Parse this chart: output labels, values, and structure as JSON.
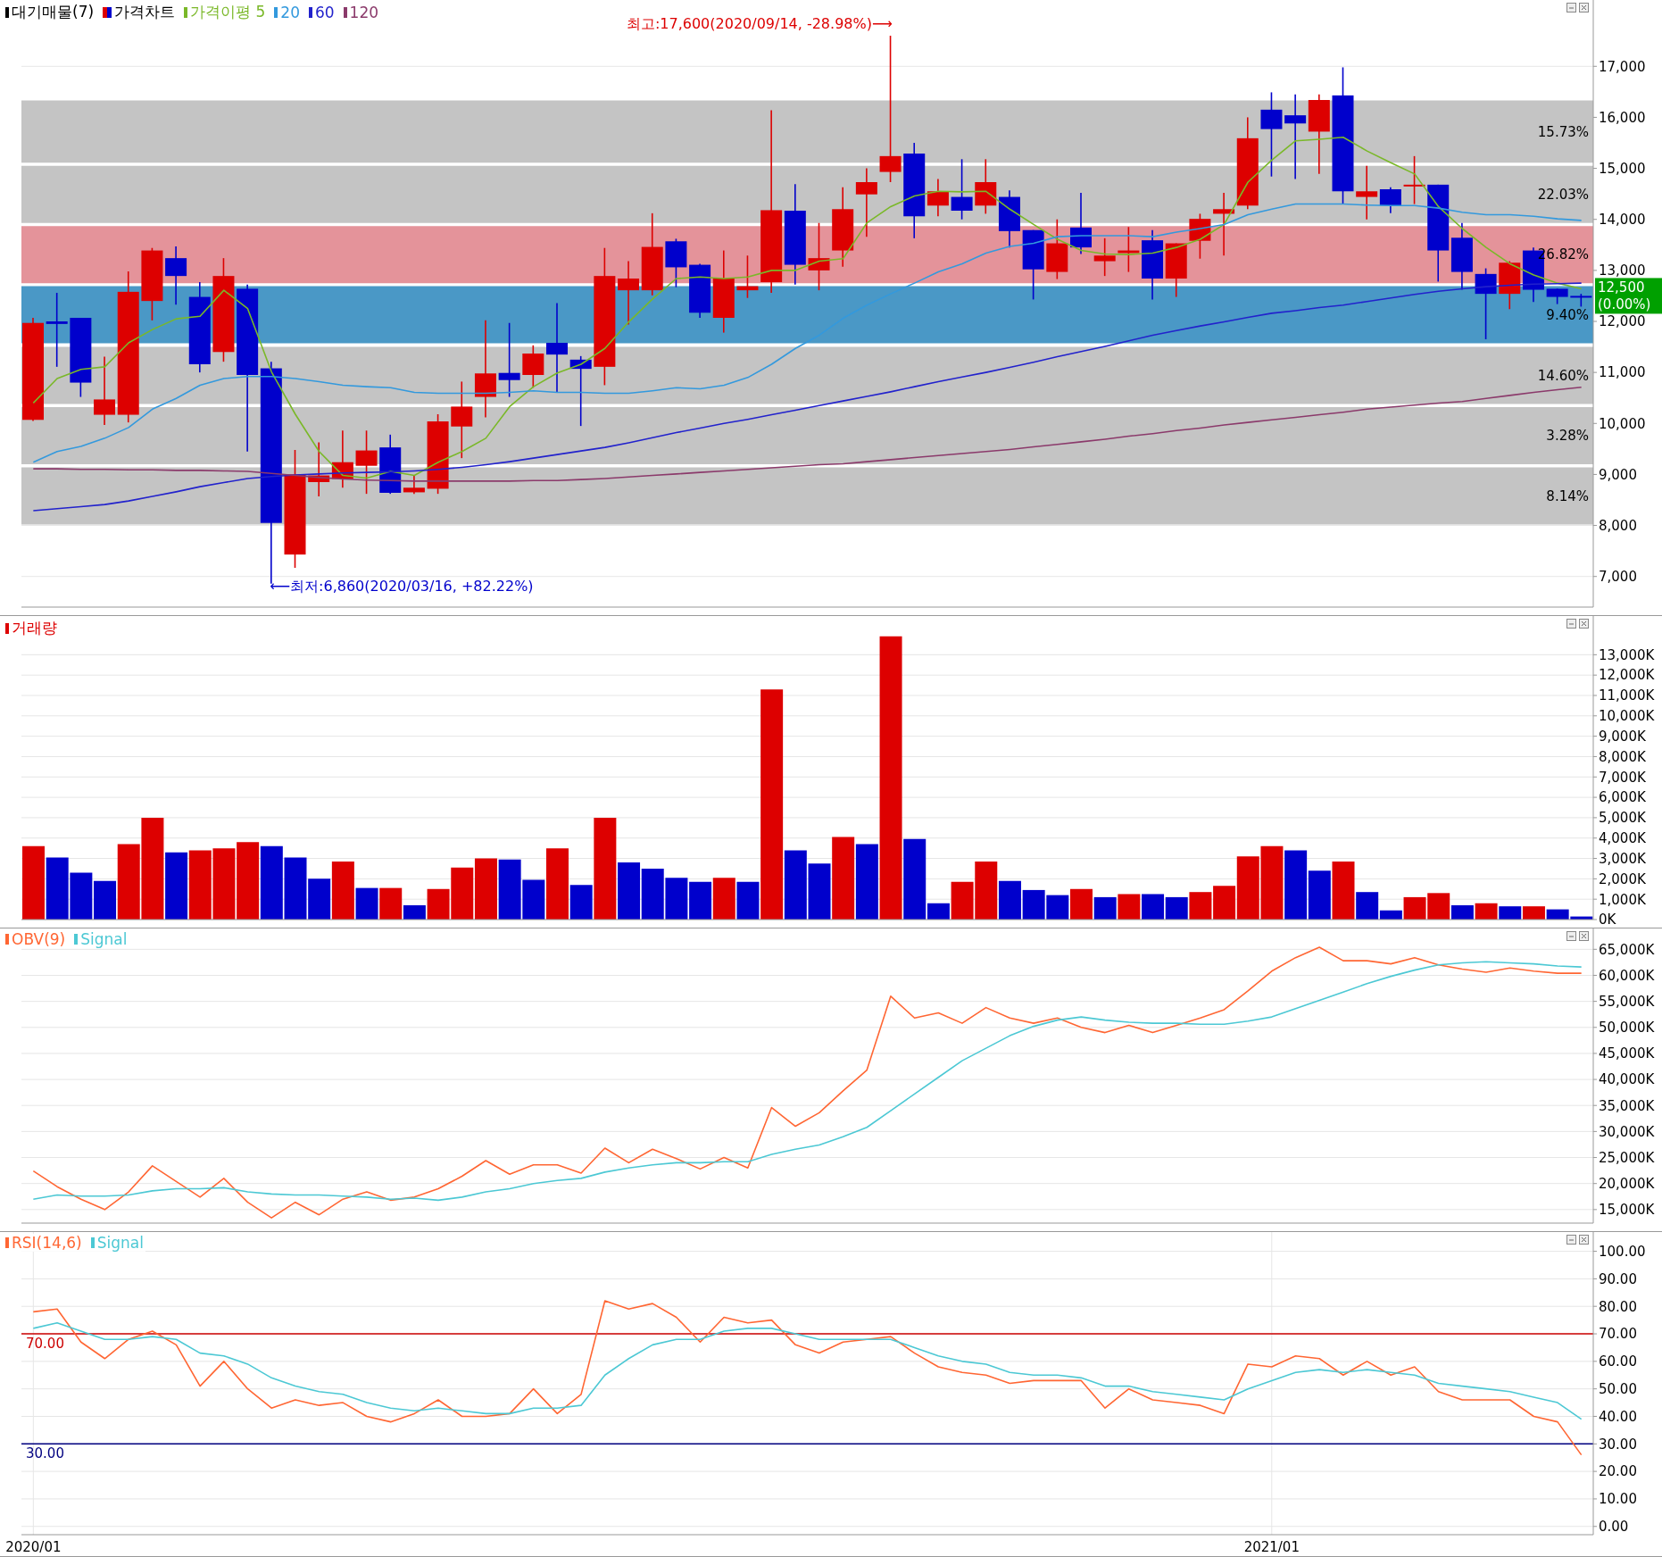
{
  "chart_data": [
    {
      "type": "candlestick",
      "legend_title": "대기매물(7)",
      "legend": "top left",
      "grid": true,
      "tick_labels": "y",
      "categories": [
        "2020/01",
        null,
        null,
        null,
        null,
        null,
        null,
        null,
        null,
        null,
        null,
        null,
        null,
        null,
        null,
        null,
        null,
        null,
        null,
        null,
        null,
        null,
        null,
        null,
        null,
        null,
        null,
        null,
        null,
        null,
        null,
        null,
        null,
        null,
        null,
        null,
        null,
        null,
        null,
        null,
        null,
        null,
        null,
        null,
        null,
        null,
        null,
        null,
        null,
        null,
        null,
        null,
        "2021/01",
        null,
        null,
        null,
        null,
        null,
        null,
        null,
        null,
        null,
        null,
        null,
        null,
        null
      ],
      "ylim": [
        6400,
        18300
      ],
      "yticks": [
        {
          "value": 7000,
          "label": "7,000"
        },
        {
          "value": 8000,
          "label": "8,000"
        },
        {
          "value": 9000,
          "label": "9,000"
        },
        {
          "value": 10000,
          "label": "10,000"
        },
        {
          "value": 11000,
          "label": "11,000"
        },
        {
          "value": 12000,
          "label": "12,000"
        },
        {
          "value": 13000,
          "label": "13,000"
        },
        {
          "value": 14000,
          "label": "14,000"
        },
        {
          "value": 15000,
          "label": "15,000"
        },
        {
          "value": 16000,
          "label": "16,000"
        },
        {
          "value": 17000,
          "label": "17,000"
        }
      ],
      "bands": [
        {
          "axis": "y",
          "from": 15110,
          "to": 16330,
          "label": "15.73%",
          "color": "#c4c4c4"
        },
        {
          "axis": "y",
          "from": 13930,
          "to": 15050,
          "label": "22.03%",
          "color": "#c4c4c4"
        },
        {
          "axis": "y",
          "from": 12750,
          "to": 13870,
          "label": "26.82%",
          "color": "#e4939a"
        },
        {
          "axis": "y",
          "from": 11570,
          "to": 12690,
          "label": "9.40%",
          "color": "#4a98c6"
        },
        {
          "axis": "y",
          "from": 10380,
          "to": 11500,
          "label": "14.60%",
          "color": "#c4c4c4"
        },
        {
          "axis": "y",
          "from": 9200,
          "to": 10320,
          "label": "3.28%",
          "color": "#c4c4c4"
        },
        {
          "axis": "y",
          "from": 8020,
          "to": 9140,
          "label": "8.14%",
          "color": "#c4c4c4"
        }
      ],
      "annotations": [
        "최고:17,600(2020/09/14, -28.98%)⟶",
        "⟵최저:6,860(2020/03/16, +82.22%)",
        "12,500\n(0.00%)"
      ],
      "series": [
        {
          "name": "가격차트",
          "ohlc": [
            [
              10070,
              12070,
              10050,
              11970
            ],
            [
              12000,
              12560,
              11110,
              11950
            ],
            [
              12070,
              12070,
              10520,
              10800
            ],
            [
              10170,
              11310,
              9970,
              10470
            ],
            [
              10170,
              12980,
              10020,
              12580
            ],
            [
              12400,
              13440,
              12020,
              13390
            ],
            [
              13240,
              13470,
              12330,
              12890
            ],
            [
              12480,
              12770,
              11000,
              11160
            ],
            [
              11400,
              13240,
              11210,
              12890
            ],
            [
              12640,
              12720,
              9450,
              10950
            ],
            [
              11080,
              11210,
              6860,
              8050
            ],
            [
              7430,
              9480,
              7170,
              9000
            ],
            [
              8850,
              9630,
              8570,
              8980
            ],
            [
              8910,
              9860,
              8740,
              9240
            ],
            [
              9170,
              9860,
              8620,
              9470
            ],
            [
              9530,
              9780,
              8620,
              8640
            ],
            [
              8650,
              8980,
              8620,
              8740
            ],
            [
              8720,
              10180,
              8620,
              10040
            ],
            [
              9940,
              10820,
              9320,
              10330
            ],
            [
              10520,
              12020,
              10120,
              10980
            ],
            [
              10990,
              11970,
              10520,
              10850
            ],
            [
              10950,
              11530,
              10700,
              11370
            ],
            [
              11580,
              12360,
              10610,
              11350
            ],
            [
              11250,
              11320,
              9950,
              11070
            ],
            [
              11110,
              13440,
              10750,
              12890
            ],
            [
              12610,
              13180,
              11940,
              12840
            ],
            [
              12610,
              14120,
              12510,
              13460
            ],
            [
              13570,
              13620,
              12670,
              13060
            ],
            [
              13110,
              13130,
              12070,
              12170
            ],
            [
              12070,
              13390,
              11780,
              12840
            ],
            [
              12610,
              13290,
              12460,
              12690
            ],
            [
              12770,
              16140,
              12560,
              14180
            ],
            [
              14170,
              14690,
              12720,
              13110
            ],
            [
              13000,
              13930,
              12610,
              13240
            ],
            [
              13390,
              14630,
              13070,
              14200
            ],
            [
              14490,
              15000,
              13660,
              14730
            ],
            [
              14930,
              17600,
              14730,
              15240
            ],
            [
              15290,
              15500,
              13630,
              14060
            ],
            [
              14270,
              14790,
              14060,
              14550
            ],
            [
              14440,
              15180,
              14000,
              14170
            ],
            [
              14270,
              15180,
              14110,
              14730
            ],
            [
              14440,
              14570,
              13450,
              13770
            ],
            [
              13790,
              13790,
              12430,
              13020
            ],
            [
              12970,
              14000,
              12830,
              13530
            ],
            [
              13840,
              14520,
              13320,
              13450
            ],
            [
              13180,
              13630,
              12890,
              13290
            ],
            [
              13340,
              13850,
              12970,
              13390
            ],
            [
              13590,
              13790,
              12430,
              12840
            ],
            [
              12840,
              13530,
              12480,
              13530
            ],
            [
              13580,
              14110,
              13230,
              14010
            ],
            [
              14110,
              14520,
              13290,
              14200
            ],
            [
              14270,
              16000,
              14200,
              15590
            ],
            [
              16150,
              16490,
              14840,
              15770
            ],
            [
              16040,
              16450,
              14790,
              15880
            ],
            [
              15720,
              16450,
              14890,
              16340
            ],
            [
              16430,
              16980,
              14300,
              14550
            ],
            [
              14440,
              15050,
              14000,
              14550
            ],
            [
              14590,
              14630,
              14120,
              14270
            ],
            [
              14660,
              15240,
              14300,
              14680
            ],
            [
              14680,
              14680,
              12780,
              13390
            ],
            [
              13640,
              13930,
              12620,
              12970
            ],
            [
              12930,
              13040,
              11650,
              12540
            ],
            [
              12540,
              13180,
              12240,
              13150
            ],
            [
              13390,
              13450,
              12380,
              12620
            ],
            [
              12640,
              12640,
              12340,
              12480
            ],
            [
              12500,
              12540,
              12290,
              12500
            ]
          ],
          "colors": [
            "#dd0000",
            "#0000cc",
            "#0000cc",
            "#dd0000",
            "#dd0000",
            "#dd0000",
            "#0000cc",
            "#0000cc",
            "#dd0000",
            "#0000cc",
            "#0000cc",
            "#dd0000",
            "#dd0000",
            "#dd0000",
            "#dd0000",
            "#0000cc",
            "#dd0000",
            "#dd0000",
            "#dd0000",
            "#dd0000",
            "#0000cc",
            "#dd0000",
            "#0000cc",
            "#0000cc",
            "#dd0000",
            "#dd0000",
            "#dd0000",
            "#0000cc",
            "#0000cc",
            "#dd0000",
            "#dd0000",
            "#dd0000",
            "#0000cc",
            "#dd0000",
            "#dd0000",
            "#dd0000",
            "#dd0000",
            "#0000cc",
            "#dd0000",
            "#0000cc",
            "#dd0000",
            "#0000cc",
            "#0000cc",
            "#dd0000",
            "#0000cc",
            "#dd0000",
            "#dd0000",
            "#0000cc",
            "#dd0000",
            "#dd0000",
            "#dd0000",
            "#dd0000",
            "#0000cc",
            "#0000cc",
            "#dd0000",
            "#0000cc",
            "#dd0000",
            "#0000cc",
            "#dd0000",
            "#0000cc",
            "#0000cc",
            "#0000cc",
            "#dd0000",
            "#0000cc",
            "#0000cc",
            "#0000cc"
          ]
        },
        {
          "name": "가격이평 5",
          "type": "line",
          "color": "#7ab828",
          "values": [
            10400,
            10880,
            11060,
            11110,
            11580,
            11840,
            12050,
            12100,
            12610,
            12250,
            11010,
            10180,
            9450,
            8980,
            8930,
            9060,
            8980,
            9240,
            9450,
            9710,
            10330,
            10720,
            10990,
            11160,
            11470,
            11990,
            12440,
            12840,
            12870,
            12840,
            12870,
            13000,
            13000,
            13180,
            13230,
            13930,
            14250,
            14460,
            14550,
            14540,
            14550,
            14200,
            13900,
            13610,
            13390,
            13320,
            13310,
            13340,
            13450,
            13610,
            13900,
            14730,
            15160,
            15540,
            15570,
            15610,
            15340,
            15110,
            14890,
            14250,
            13820,
            13450,
            13130,
            12910,
            12750,
            12640
          ]
        },
        {
          "name": "20",
          "type": "line",
          "color": "#3399dd",
          "values": [
            9240,
            9450,
            9550,
            9710,
            9920,
            10280,
            10490,
            10750,
            10880,
            10920,
            10920,
            10880,
            10820,
            10750,
            10720,
            10700,
            10610,
            10590,
            10590,
            10590,
            10610,
            10640,
            10610,
            10610,
            10590,
            10590,
            10640,
            10700,
            10680,
            10750,
            10900,
            11160,
            11470,
            11730,
            12060,
            12320,
            12540,
            12750,
            12970,
            13130,
            13340,
            13470,
            13530,
            13660,
            13680,
            13680,
            13680,
            13660,
            13750,
            13820,
            13900,
            14090,
            14200,
            14300,
            14300,
            14300,
            14280,
            14270,
            14270,
            14220,
            14140,
            14090,
            14090,
            14060,
            14010,
            13980
          ]
        },
        {
          "name": "60",
          "type": "line",
          "color": "#2222cc",
          "values": [
            8290,
            8330,
            8370,
            8410,
            8480,
            8570,
            8660,
            8760,
            8840,
            8920,
            8960,
            8990,
            9010,
            9030,
            9040,
            9050,
            9070,
            9100,
            9140,
            9190,
            9250,
            9320,
            9390,
            9460,
            9530,
            9620,
            9720,
            9820,
            9910,
            10000,
            10080,
            10170,
            10260,
            10350,
            10440,
            10530,
            10620,
            10720,
            10820,
            10910,
            11000,
            11100,
            11200,
            11310,
            11410,
            11510,
            11620,
            11730,
            11820,
            11910,
            11990,
            12080,
            12160,
            12210,
            12270,
            12320,
            12390,
            12460,
            12530,
            12590,
            12640,
            12680,
            12710,
            12730,
            12740,
            12750
          ]
        },
        {
          "name": "120",
          "type": "line",
          "color": "#8b3a6b",
          "values": [
            9110,
            9110,
            9100,
            9100,
            9090,
            9090,
            9080,
            9080,
            9070,
            9060,
            9020,
            8980,
            8940,
            8910,
            8890,
            8880,
            8870,
            8870,
            8870,
            8870,
            8870,
            8880,
            8880,
            8900,
            8920,
            8950,
            8980,
            9010,
            9040,
            9070,
            9100,
            9130,
            9160,
            9190,
            9210,
            9250,
            9290,
            9330,
            9370,
            9410,
            9450,
            9490,
            9540,
            9590,
            9640,
            9690,
            9750,
            9800,
            9860,
            9910,
            9970,
            10020,
            10070,
            10120,
            10170,
            10220,
            10280,
            10320,
            10360,
            10400,
            10430,
            10490,
            10550,
            10610,
            10660,
            10710
          ]
        }
      ]
    },
    {
      "type": "bar",
      "legend": "top left",
      "grid": true,
      "tick_labels": "y",
      "categories": [
        "2020/01",
        null,
        null,
        null,
        null,
        null,
        null,
        null,
        null,
        null,
        null,
        null,
        null,
        null,
        null,
        null,
        null,
        null,
        null,
        null,
        null,
        null,
        null,
        null,
        null,
        null,
        null,
        null,
        null,
        null,
        null,
        null,
        null,
        null,
        null,
        null,
        null,
        null,
        null,
        null,
        null,
        null,
        null,
        null,
        null,
        null,
        null,
        null,
        null,
        null,
        null,
        null,
        "2021/01",
        null,
        null,
        null,
        null,
        null,
        null,
        null,
        null,
        null,
        null,
        null,
        null,
        null
      ],
      "ylim": [
        0,
        14900
      ],
      "yticks": [
        {
          "value": 0,
          "label": "0K"
        },
        {
          "value": 1000,
          "label": "1,000K"
        },
        {
          "value": 2000,
          "label": "2,000K"
        },
        {
          "value": 3000,
          "label": "3,000K"
        },
        {
          "value": 4000,
          "label": "4,000K"
        },
        {
          "value": 5000,
          "label": "5,000K"
        },
        {
          "value": 6000,
          "label": "6,000K"
        },
        {
          "value": 7000,
          "label": "7,000K"
        },
        {
          "value": 8000,
          "label": "8,000K"
        },
        {
          "value": 9000,
          "label": "9,000K"
        },
        {
          "value": 10000,
          "label": "10,000K"
        },
        {
          "value": 11000,
          "label": "11,000K"
        },
        {
          "value": 12000,
          "label": "12,000K"
        },
        {
          "value": 13000,
          "label": "13,000K"
        }
      ],
      "series": [
        {
          "name": "거래량",
          "color": "#dd0000",
          "values": [
            3600,
            3050,
            2300,
            1900,
            3700,
            5000,
            3300,
            3400,
            3500,
            3800,
            3600,
            3050,
            2000,
            2850,
            1550,
            1550,
            700,
            1500,
            2550,
            3000,
            2950,
            1950,
            3500,
            1700,
            5000,
            2800,
            2500,
            2050,
            1850,
            2050,
            1850,
            11300,
            3400,
            2750,
            4050,
            3700,
            13900,
            3950,
            800,
            1850,
            2850,
            1900,
            1450,
            1200,
            1500,
            1100,
            1250,
            1250,
            1100,
            1350,
            1650,
            3100,
            3600,
            3400,
            2400,
            2850,
            1350,
            450,
            1100,
            1300,
            700,
            800,
            650,
            650,
            500,
            150
          ],
          "colors": [
            "#dd0000",
            "#0000cc",
            "#0000cc",
            "#0000cc",
            "#dd0000",
            "#dd0000",
            "#0000cc",
            "#dd0000",
            "#dd0000",
            "#dd0000",
            "#0000cc",
            "#0000cc",
            "#0000cc",
            "#dd0000",
            "#0000cc",
            "#dd0000",
            "#0000cc",
            "#dd0000",
            "#dd0000",
            "#dd0000",
            "#0000cc",
            "#0000cc",
            "#dd0000",
            "#0000cc",
            "#dd0000",
            "#0000cc",
            "#0000cc",
            "#0000cc",
            "#0000cc",
            "#dd0000",
            "#0000cc",
            "#dd0000",
            "#0000cc",
            "#0000cc",
            "#dd0000",
            "#0000cc",
            "#dd0000",
            "#0000cc",
            "#0000cc",
            "#dd0000",
            "#dd0000",
            "#0000cc",
            "#0000cc",
            "#0000cc",
            "#dd0000",
            "#0000cc",
            "#dd0000",
            "#0000cc",
            "#0000cc",
            "#dd0000",
            "#dd0000",
            "#dd0000",
            "#dd0000",
            "#0000cc",
            "#0000cc",
            "#dd0000",
            "#0000cc",
            "#0000cc",
            "#dd0000",
            "#dd0000",
            "#0000cc",
            "#dd0000",
            "#0000cc",
            "#dd0000",
            "#0000cc",
            "#0000cc"
          ]
        }
      ]
    },
    {
      "type": "line",
      "legend": "top left",
      "grid": true,
      "tick_labels": "y",
      "categories": [
        "2020/01",
        null,
        null,
        null,
        null,
        null,
        null,
        null,
        null,
        null,
        null,
        null,
        null,
        null,
        null,
        null,
        null,
        null,
        null,
        null,
        null,
        null,
        null,
        null,
        null,
        null,
        null,
        null,
        null,
        null,
        null,
        null,
        null,
        null,
        null,
        null,
        null,
        null,
        null,
        null,
        null,
        null,
        null,
        null,
        null,
        null,
        null,
        null,
        null,
        null,
        null,
        null,
        "2021/01",
        null,
        null,
        null,
        null,
        null,
        null,
        null,
        null,
        null,
        null,
        null,
        null,
        null
      ],
      "ylim": [
        12400,
        69000
      ],
      "yticks": [
        {
          "value": 15000,
          "label": "15,000K"
        },
        {
          "value": 20000,
          "label": "20,000K"
        },
        {
          "value": 25000,
          "label": "25,000K"
        },
        {
          "value": 30000,
          "label": "30,000K"
        },
        {
          "value": 35000,
          "label": "35,000K"
        },
        {
          "value": 40000,
          "label": "40,000K"
        },
        {
          "value": 45000,
          "label": "45,000K"
        },
        {
          "value": 50000,
          "label": "50,000K"
        },
        {
          "value": 55000,
          "label": "55,000K"
        },
        {
          "value": 60000,
          "label": "60,000K"
        },
        {
          "value": 65000,
          "label": "65,000K"
        }
      ],
      "series": [
        {
          "name": "OBV(9)",
          "color": "#ff6633",
          "values": [
            22400,
            19400,
            17000,
            15000,
            18400,
            23400,
            20400,
            17400,
            21000,
            16400,
            13400,
            16400,
            14000,
            17000,
            18400,
            16800,
            17400,
            19000,
            21400,
            24400,
            21800,
            23600,
            23600,
            22000,
            26800,
            24000,
            26600,
            24800,
            22800,
            25000,
            23000,
            34600,
            31000,
            33600,
            37800,
            41800,
            56000,
            51800,
            52800,
            50800,
            53800,
            51800,
            50800,
            51800,
            50000,
            49000,
            50400,
            49000,
            50400,
            51800,
            53400,
            57000,
            60800,
            63400,
            65400,
            62800,
            62800,
            62200,
            63400,
            62000,
            61200,
            60600,
            61400,
            60800,
            60400,
            60400
          ]
        },
        {
          "name": "Signal",
          "color": "#4cc8d4",
          "values": [
            17000,
            17800,
            17600,
            17600,
            17800,
            18600,
            19000,
            19000,
            19200,
            18400,
            18000,
            17800,
            17800,
            17600,
            17400,
            17000,
            17200,
            16800,
            17400,
            18400,
            19000,
            20000,
            20600,
            21000,
            22200,
            23000,
            23600,
            24000,
            24000,
            24200,
            24200,
            25600,
            26600,
            27400,
            29000,
            30800,
            34000,
            37200,
            40400,
            43600,
            46000,
            48400,
            50200,
            51400,
            52000,
            51400,
            51000,
            50800,
            50800,
            50600,
            50600,
            51200,
            52000,
            53600,
            55200,
            56800,
            58400,
            59800,
            61000,
            62000,
            62400,
            62600,
            62400,
            62200,
            61800,
            61600
          ]
        }
      ]
    },
    {
      "type": "line",
      "legend": "top left",
      "grid": true,
      "categories": [
        "2020/01",
        null,
        null,
        null,
        null,
        null,
        null,
        null,
        null,
        null,
        null,
        null,
        null,
        null,
        null,
        null,
        null,
        null,
        null,
        null,
        null,
        null,
        null,
        null,
        null,
        null,
        null,
        null,
        null,
        null,
        null,
        null,
        null,
        null,
        null,
        null,
        null,
        null,
        null,
        null,
        null,
        null,
        null,
        null,
        null,
        null,
        null,
        null,
        null,
        null,
        null,
        null,
        "2021/01",
        null,
        null,
        null,
        null,
        null,
        null,
        null,
        null,
        null,
        null,
        null,
        null,
        null
      ],
      "ylim": [
        -3,
        107
      ],
      "yticks": [
        {
          "value": 0,
          "label": "0.00"
        },
        {
          "value": 10,
          "label": "10.00"
        },
        {
          "value": 20,
          "label": "20.00"
        },
        {
          "value": 30,
          "label": "30.00"
        },
        {
          "value": 40,
          "label": "40.00"
        },
        {
          "value": 50,
          "label": "50.00"
        },
        {
          "value": 60,
          "label": "60.00"
        },
        {
          "value": 70,
          "label": "70.00"
        },
        {
          "value": 80,
          "label": "80.00"
        },
        {
          "value": 90,
          "label": "90.00"
        },
        {
          "value": 100,
          "label": "100.00"
        }
      ],
      "ref_lines": [
        {
          "axis": "y",
          "value": 70,
          "label": "70.00",
          "color": "#cc0000"
        },
        {
          "axis": "y",
          "value": 30,
          "label": "30.00",
          "color": "#000080"
        }
      ],
      "series": [
        {
          "name": "RSI(14,6)",
          "color": "#ff6633",
          "values": [
            78,
            79,
            67,
            61,
            68,
            71,
            66,
            51,
            60,
            50,
            43,
            46,
            44,
            45,
            40,
            38,
            41,
            46,
            40,
            40,
            41,
            50,
            41,
            48,
            82,
            79,
            81,
            76,
            67,
            76,
            74,
            75,
            66,
            63,
            67,
            68,
            69,
            63,
            58,
            56,
            55,
            52,
            53,
            53,
            53,
            43,
            50,
            46,
            45,
            44,
            41,
            59,
            58,
            62,
            61,
            55,
            60,
            55,
            58,
            49,
            46,
            46,
            46,
            40,
            38,
            26
          ]
        },
        {
          "name": "Signal",
          "color": "#4cc8d4",
          "values": [
            72,
            74,
            71,
            68,
            68,
            69,
            68,
            63,
            62,
            59,
            54,
            51,
            49,
            48,
            45,
            43,
            42,
            43,
            42,
            41,
            41,
            43,
            43,
            44,
            55,
            61,
            66,
            68,
            68,
            71,
            72,
            72,
            70,
            68,
            68,
            68,
            68,
            65,
            62,
            60,
            59,
            56,
            55,
            55,
            54,
            51,
            51,
            49,
            48,
            47,
            46,
            50,
            53,
            56,
            57,
            56,
            57,
            56,
            55,
            52,
            51,
            50,
            49,
            47,
            45,
            39
          ]
        }
      ]
    }
  ]
}
